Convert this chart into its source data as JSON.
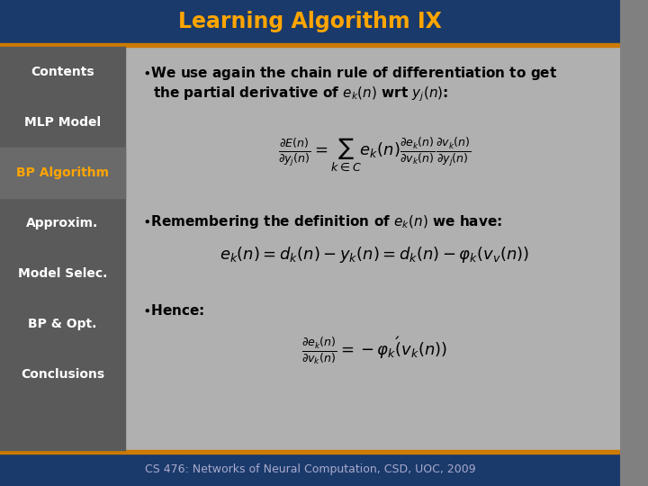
{
  "title": "Learning Algorithm IX",
  "title_color": "#FFA500",
  "title_bg_color": "#1a3a6b",
  "title_bar_accent": "#cc7a00",
  "main_bg_color": "#808080",
  "sidebar_bg_color": "#5a5a5a",
  "sidebar_highlight_color": "#6a6a6a",
  "sidebar_highlight_text": "#FFA500",
  "sidebar_items": [
    "Contents",
    "MLP Model",
    "BP Algorithm",
    "Approxim.",
    "Model Selec.",
    "BP & Opt.",
    "Conclusions"
  ],
  "sidebar_highlighted_index": 2,
  "footer_text": "CS 476: Networks of Neural Computation, CSD, UOC, 2009",
  "footer_bg_color": "#1a3a6b",
  "footer_text_color": "#aaaacc",
  "accent_line_color": "#cc7a00",
  "bullet_color": "#000000",
  "text_color": "#000000",
  "formula_color": "#000000",
  "sidebar_text_color": "#ffffff",
  "content_bg_color": "#b0b0b0"
}
